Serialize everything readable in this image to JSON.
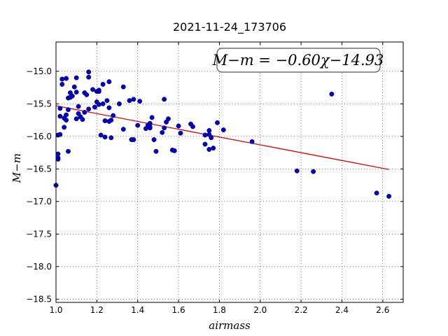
{
  "chart_data": {
    "type": "scatter",
    "title": "2021-11-24_173706",
    "xlabel": "airmass",
    "ylabel": "M−m",
    "xlim": [
      1.0,
      2.7
    ],
    "ylim": [
      -18.55,
      -14.55
    ],
    "x_ticks": [
      1.0,
      1.2,
      1.4,
      1.6,
      1.8,
      2.0,
      2.2,
      2.4,
      2.6
    ],
    "x_tick_labels": [
      "1.0",
      "1.2",
      "1.4",
      "1.6",
      "1.8",
      "2.0",
      "2.2",
      "2.4",
      "2.6"
    ],
    "y_ticks": [
      -15.0,
      -15.5,
      -16.0,
      -16.5,
      -17.0,
      -17.5,
      -18.0,
      -18.5
    ],
    "y_tick_labels": [
      "−15.0",
      "−15.5",
      "−16.0",
      "−16.5",
      "−17.0",
      "−17.5",
      "−18.0",
      "−18.5"
    ],
    "grid": true,
    "annotation": "M−m = −0.60χ−14.93",
    "annotation_position": "top-right",
    "series": [
      {
        "color": "#0000cc",
        "points": [
          [
            1.0,
            -16.75
          ],
          [
            1.01,
            -16.27
          ],
          [
            1.01,
            -16.33
          ],
          [
            1.01,
            -16.35
          ],
          [
            1.01,
            -15.98
          ],
          [
            1.02,
            -15.97
          ],
          [
            1.02,
            -15.57
          ],
          [
            1.02,
            -15.69
          ],
          [
            1.03,
            -15.2
          ],
          [
            1.03,
            -15.12
          ],
          [
            1.04,
            -15.72
          ],
          [
            1.04,
            -15.86
          ],
          [
            1.05,
            -15.75
          ],
          [
            1.05,
            -15.11
          ],
          [
            1.05,
            -15.67
          ],
          [
            1.06,
            -15.41
          ],
          [
            1.06,
            -16.23
          ],
          [
            1.06,
            -15.59
          ],
          [
            1.07,
            -15.33
          ],
          [
            1.07,
            -15.4
          ],
          [
            1.08,
            -15.38
          ],
          [
            1.09,
            -15.24
          ],
          [
            1.1,
            -15.73
          ],
          [
            1.1,
            -15.32
          ],
          [
            1.1,
            -15.1
          ],
          [
            1.11,
            -15.65
          ],
          [
            1.11,
            -15.54
          ],
          [
            1.12,
            -15.7
          ],
          [
            1.13,
            -15.74
          ],
          [
            1.14,
            -15.63
          ],
          [
            1.14,
            -15.33
          ],
          [
            1.15,
            -15.36
          ],
          [
            1.16,
            -15.58
          ],
          [
            1.16,
            -15.01
          ],
          [
            1.16,
            -15.09
          ],
          [
            1.18,
            -15.28
          ],
          [
            1.19,
            -15.55
          ],
          [
            1.2,
            -15.31
          ],
          [
            1.2,
            -15.47
          ],
          [
            1.21,
            -15.31
          ],
          [
            1.21,
            -15.29
          ],
          [
            1.21,
            -15.51
          ],
          [
            1.22,
            -15.98
          ],
          [
            1.23,
            -15.5
          ],
          [
            1.23,
            -15.2
          ],
          [
            1.24,
            -15.76
          ],
          [
            1.24,
            -16.01
          ],
          [
            1.25,
            -15.45
          ],
          [
            1.26,
            -15.16
          ],
          [
            1.26,
            -15.56
          ],
          [
            1.26,
            -15.77
          ],
          [
            1.27,
            -16.02
          ],
          [
            1.27,
            -15.75
          ],
          [
            1.28,
            -15.68
          ],
          [
            1.31,
            -15.5
          ],
          [
            1.33,
            -15.24
          ],
          [
            1.33,
            -15.89
          ],
          [
            1.36,
            -15.45
          ],
          [
            1.37,
            -16.05
          ],
          [
            1.38,
            -16.05
          ],
          [
            1.38,
            -15.43
          ],
          [
            1.4,
            -15.83
          ],
          [
            1.41,
            -15.46
          ],
          [
            1.44,
            -15.88
          ],
          [
            1.45,
            -15.83
          ],
          [
            1.46,
            -15.8
          ],
          [
            1.46,
            -15.87
          ],
          [
            1.46,
            -15.85
          ],
          [
            1.47,
            -15.71
          ],
          [
            1.48,
            -16.05
          ],
          [
            1.49,
            -16.23
          ],
          [
            1.52,
            -15.94
          ],
          [
            1.53,
            -15.43
          ],
          [
            1.53,
            -15.87
          ],
          [
            1.54,
            -15.78
          ],
          [
            1.55,
            -15.73
          ],
          [
            1.57,
            -16.21
          ],
          [
            1.58,
            -16.22
          ],
          [
            1.6,
            -15.84
          ],
          [
            1.61,
            -15.95
          ],
          [
            1.66,
            -15.81
          ],
          [
            1.67,
            -15.85
          ],
          [
            1.73,
            -16.12
          ],
          [
            1.73,
            -15.98
          ],
          [
            1.75,
            -15.91
          ],
          [
            1.75,
            -16.2
          ],
          [
            1.75,
            -15.97
          ],
          [
            1.76,
            -16.02
          ],
          [
            1.77,
            -16.18
          ],
          [
            1.79,
            -15.79
          ],
          [
            1.82,
            -15.9
          ],
          [
            1.96,
            -16.08
          ],
          [
            2.18,
            -16.53
          ],
          [
            2.26,
            -16.54
          ],
          [
            2.35,
            -15.35
          ],
          [
            2.57,
            -16.87
          ],
          [
            2.63,
            -16.92
          ]
        ]
      }
    ],
    "fit_line": {
      "color": "#dd0000",
      "slope": -0.6,
      "intercept": -14.93,
      "x_range": [
        1.0,
        2.63
      ]
    }
  }
}
